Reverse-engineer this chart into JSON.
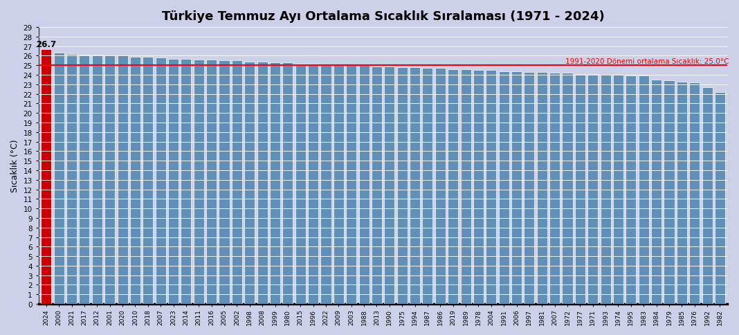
{
  "title": "Türkiye Temmuz Ayı Ortalama Sıcaklık Sıralaması (1971 - 2024)",
  "ylabel": "Sıcaklık (°C)",
  "background_color": "#ccd0e8",
  "plot_bg_color": "#ccd0e8",
  "bar_color": "#6090b8",
  "bar_color_first": "#cc0000",
  "bar_edge_color": "#ffffff",
  "reference_line": 25.0,
  "reference_label": "1991-2020 Dönemi ortalama Sıcaklık: 25.0°C",
  "ylim": [
    0,
    29
  ],
  "yticks": [
    0,
    1,
    2,
    3,
    4,
    5,
    6,
    7,
    8,
    9,
    10,
    11,
    12,
    13,
    14,
    15,
    16,
    17,
    18,
    19,
    20,
    21,
    22,
    23,
    24,
    25,
    26,
    27,
    28,
    29
  ],
  "first_bar_label": "26.7",
  "years": [
    "2024",
    "2000",
    "2021",
    "2017",
    "2012",
    "2001",
    "2020",
    "2010",
    "2018",
    "2007",
    "2023",
    "2014",
    "2011",
    "2016",
    "2005",
    "2002",
    "1998",
    "2008",
    "1999",
    "1980",
    "2015",
    "1996",
    "2022",
    "2009",
    "2003",
    "1988",
    "2013",
    "1990",
    "1975",
    "1994",
    "1987",
    "1986",
    "2019",
    "1989",
    "1978",
    "2004",
    "1991",
    "2006",
    "1997",
    "1981",
    "2007",
    "1972",
    "1977",
    "1971",
    "1993",
    "1974",
    "1995",
    "1983",
    "1984",
    "1979",
    "1985",
    "1976",
    "1992",
    "1982"
  ],
  "values": [
    26.7,
    26.3,
    26.2,
    26.1,
    26.1,
    26.0,
    26.0,
    25.9,
    25.9,
    25.8,
    25.7,
    25.7,
    25.6,
    25.6,
    25.5,
    25.5,
    25.4,
    25.4,
    25.3,
    25.3,
    25.2,
    25.2,
    25.1,
    25.1,
    25.0,
    25.0,
    24.9,
    24.9,
    24.8,
    24.8,
    24.7,
    24.7,
    24.6,
    24.6,
    24.5,
    24.5,
    24.4,
    24.4,
    24.3,
    24.3,
    24.2,
    24.2,
    24.1,
    24.1,
    24.0,
    24.0,
    23.9,
    23.9,
    23.5,
    23.4,
    23.3,
    23.2,
    22.7,
    22.2
  ]
}
